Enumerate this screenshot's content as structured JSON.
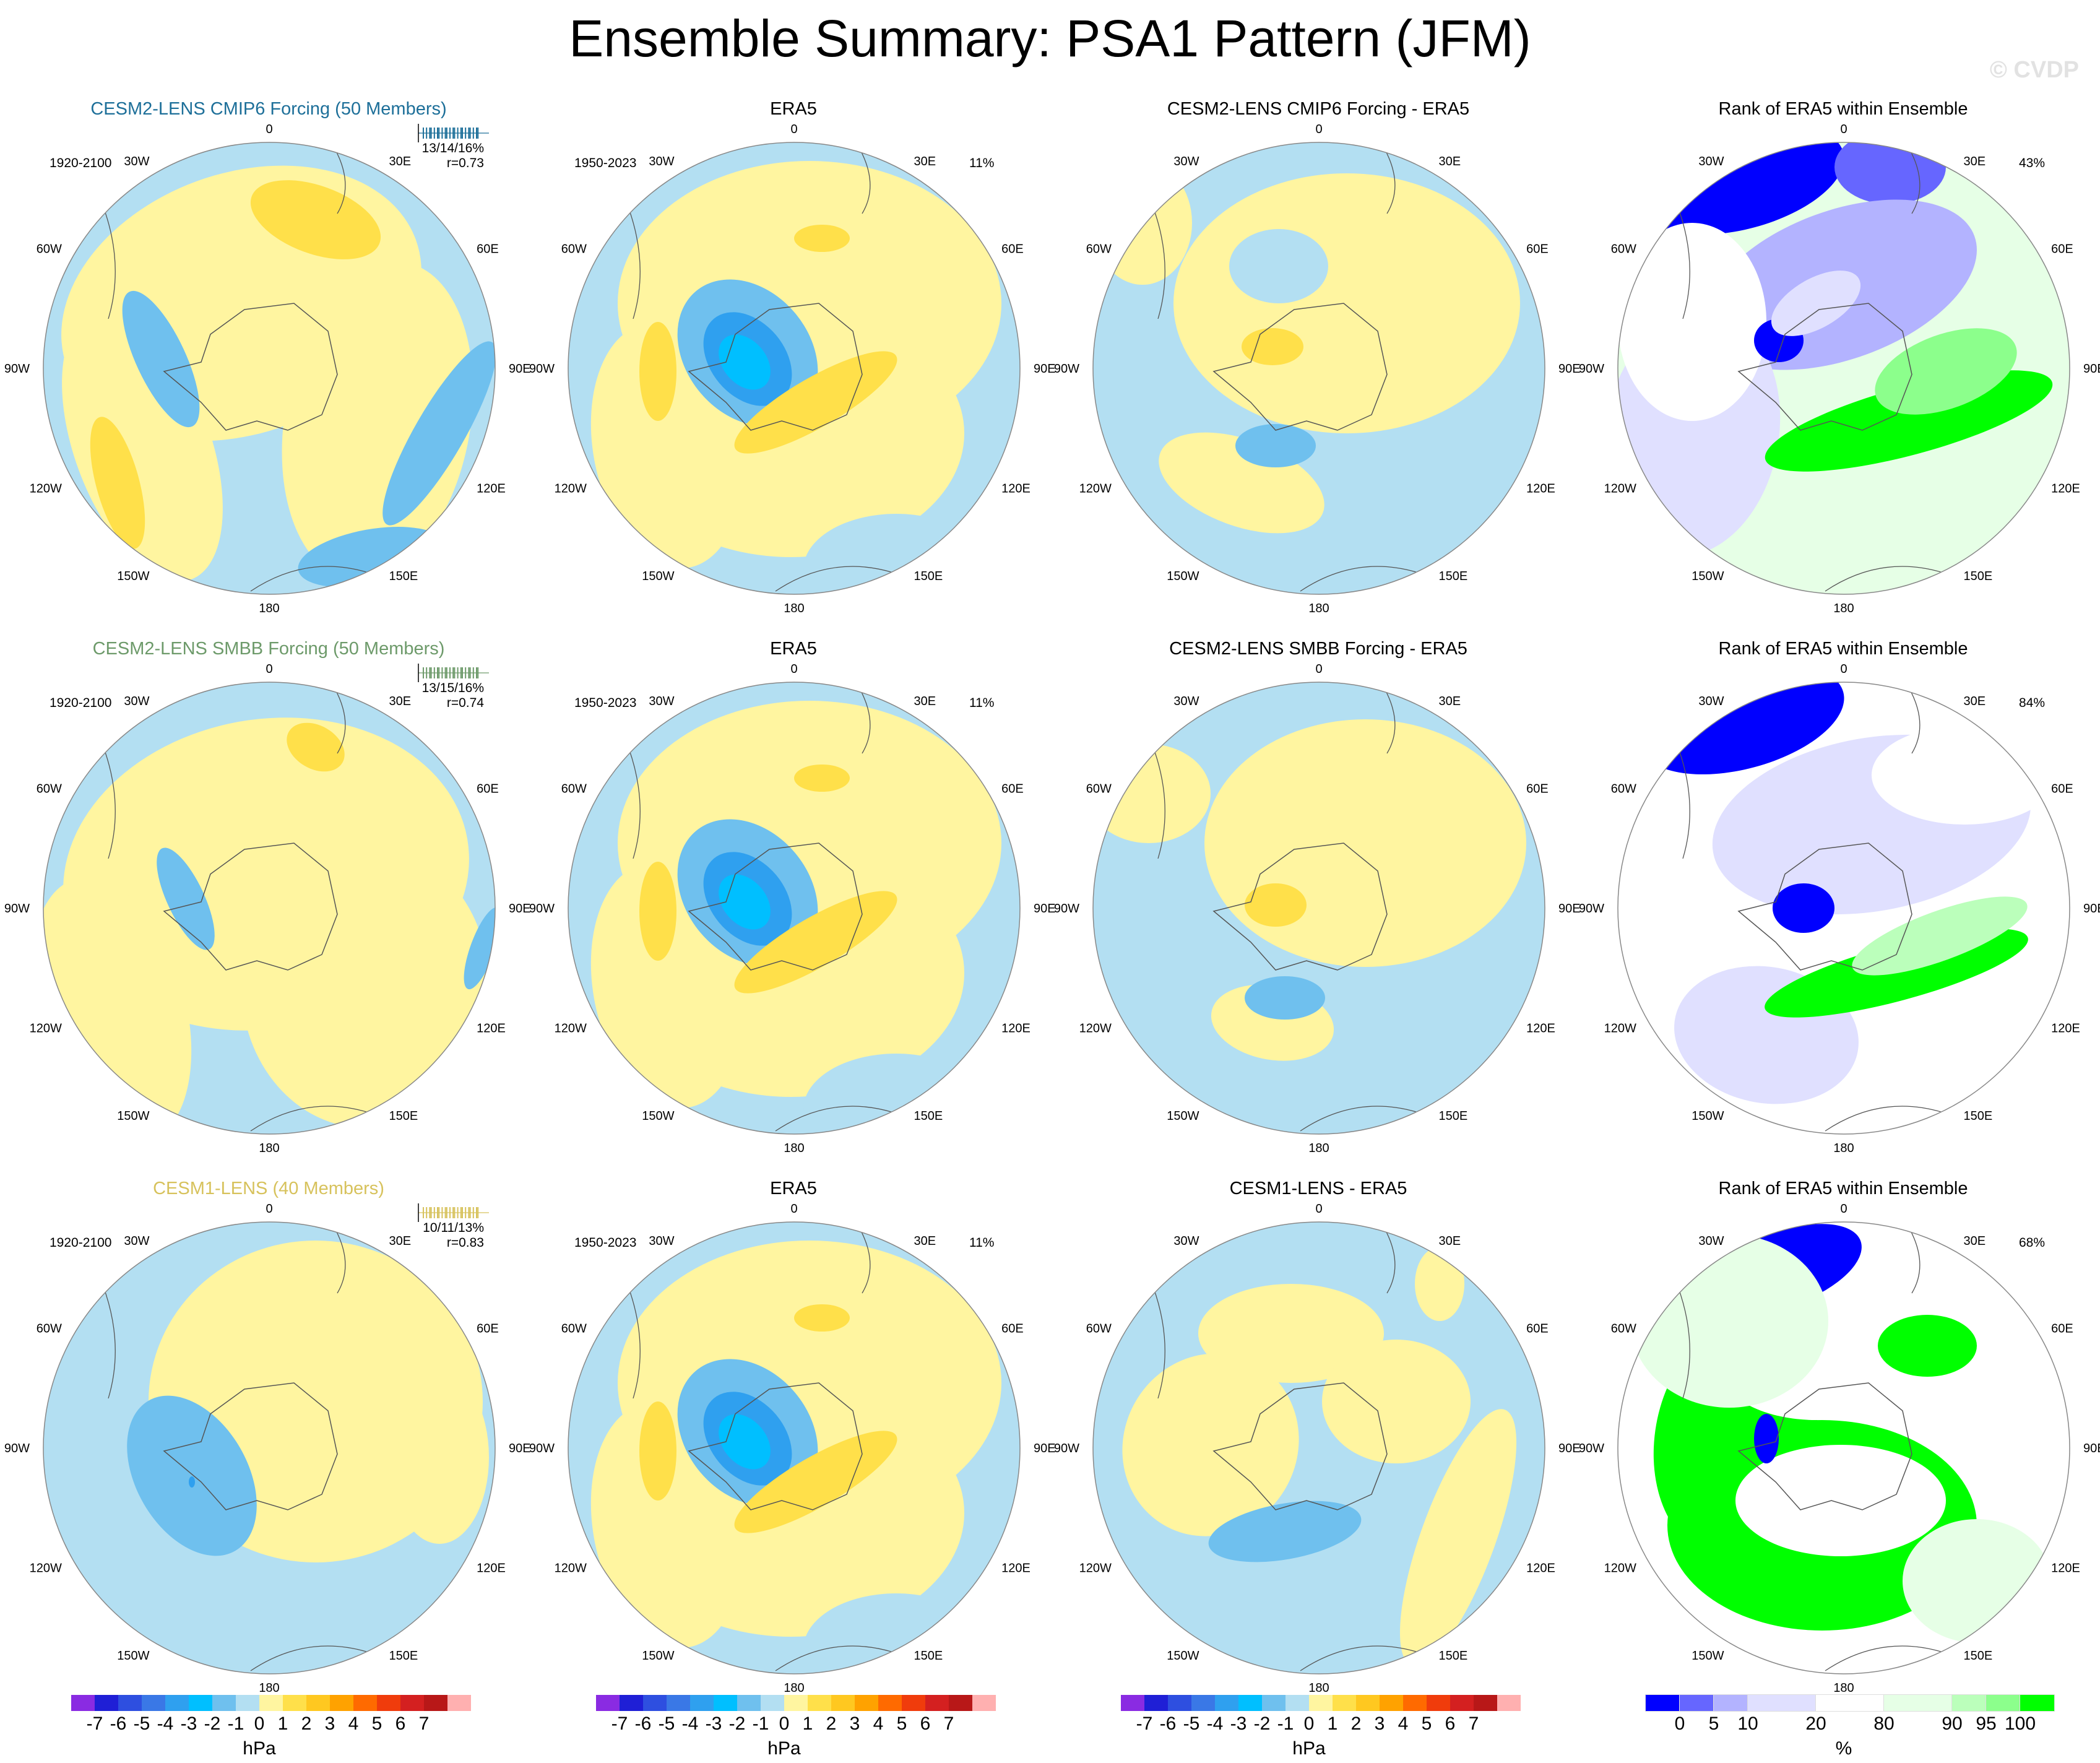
{
  "title": "Ensemble Summary: PSA1 Pattern (JFM)",
  "watermark": "© CVDP",
  "map_labels": {
    "lon": [
      "0",
      "30E",
      "60E",
      "90E",
      "120E",
      "150E",
      "180",
      "150W",
      "120W",
      "90W",
      "60W",
      "30W"
    ]
  },
  "colors": {
    "model_0": "#1d6f99",
    "model_1": "#6d9a6a",
    "model_2": "#d7c25c",
    "anomaly_levels": [
      "#8a2be2",
      "#1f1fd6",
      "#2e4fe0",
      "#3a78e6",
      "#2fa0ef",
      "#00bfff",
      "#6fc0ee",
      "#b3dff2",
      "#fff5a0",
      "#ffe04a",
      "#ffc820",
      "#ffa200",
      "#ff6a00",
      "#f03c0c",
      "#d42020",
      "#b81818",
      "#ffb0b0"
    ],
    "rank_levels": [
      "#0000ff",
      "#6666ff",
      "#b3b3ff",
      "#e0e0ff",
      "#ffffff",
      "#e6ffe6",
      "#bbffbb",
      "#8cff8c",
      "#00ff00"
    ]
  },
  "rows": [
    {
      "model_title": "CESM2-LENS CMIP6 Forcing (50 Members)",
      "model_period": "1920-2100",
      "model_stats": "13/14/16%",
      "model_r": "r=0.73",
      "obs_title": "ERA5",
      "obs_period": "1950-2023",
      "obs_pct": "11%",
      "diff_title": "CESM2-LENS CMIP6 Forcing - ERA5",
      "rank_title": "Rank of ERA5 within Ensemble",
      "rank_pct": "43%"
    },
    {
      "model_title": "CESM2-LENS SMBB Forcing (50 Members)",
      "model_period": "1920-2100",
      "model_stats": "13/15/16%",
      "model_r": "r=0.74",
      "obs_title": "ERA5",
      "obs_period": "1950-2023",
      "obs_pct": "11%",
      "diff_title": "CESM2-LENS SMBB Forcing - ERA5",
      "rank_title": "Rank of ERA5 within Ensemble",
      "rank_pct": "84%"
    },
    {
      "model_title": "CESM1-LENS (40 Members)",
      "model_period": "1920-2100",
      "model_stats": "10/11/13%",
      "model_r": "r=0.83",
      "obs_title": "ERA5",
      "obs_period": "1950-2023",
      "obs_pct": "11%",
      "diff_title": "CESM1-LENS - ERA5",
      "rank_title": "Rank of ERA5 within Ensemble",
      "rank_pct": "68%"
    }
  ],
  "chart_data": {
    "type": "heatmap",
    "projection": "south polar stereographic",
    "variable": "PSA1 pattern, sea level pressure anomaly",
    "season": "JFM",
    "units": "hPa",
    "colorbar_ticks": [
      "-7",
      "-6",
      "-5",
      "-4",
      "-3",
      "-2",
      "-1",
      "0",
      "1",
      "2",
      "3",
      "4",
      "5",
      "6",
      "7"
    ],
    "colorbar_unit": "hPa",
    "rank_colorbar_ticks": [
      "0",
      "5",
      "10",
      "20",
      "80",
      "90",
      "95",
      "100"
    ],
    "rank_colorbar_unit": "%"
  }
}
